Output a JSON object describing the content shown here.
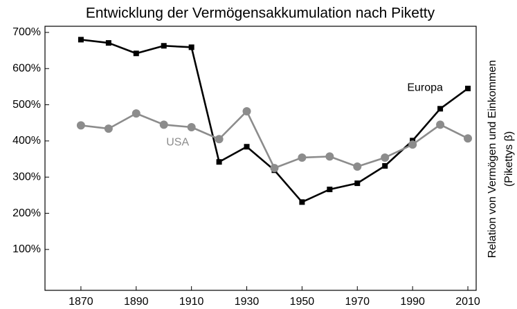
{
  "chart_data": {
    "type": "line",
    "title": "Entwicklung der Vermögensakkumulation nach Piketty",
    "y_label": [
      "Relation von Vermögen und Einkommen",
      "(Pikettys β)"
    ],
    "x": [
      1870,
      1880,
      1890,
      1900,
      1910,
      1920,
      1930,
      1940,
      1950,
      1960,
      1970,
      1980,
      1990,
      2000,
      2010
    ],
    "series": [
      {
        "name": "Europa",
        "color": "#000000",
        "marker": "square",
        "values": [
          680,
          671,
          642,
          663,
          659,
          342,
          384,
          319,
          231,
          266,
          283,
          331,
          401,
          489,
          545
        ]
      },
      {
        "name": "USA",
        "color": "#8c8c8c",
        "marker": "circle",
        "values": [
          443,
          434,
          476,
          445,
          438,
          405,
          482,
          325,
          354,
          357,
          329,
          354,
          390,
          445,
          407
        ]
      }
    ],
    "xlim": [
      1857,
      2013
    ],
    "xticks": [
      1870,
      1890,
      1910,
      1930,
      1950,
      1970,
      1990,
      2010
    ],
    "ylim": [
      -13,
      717
    ],
    "yticks": [
      {
        "value": 100,
        "label": "100%"
      },
      {
        "value": 200,
        "label": "200%"
      },
      {
        "value": 300,
        "label": "300%"
      },
      {
        "value": 400,
        "label": "400%"
      },
      {
        "value": 500,
        "label": "500%"
      },
      {
        "value": 600,
        "label": "600%"
      },
      {
        "value": 700,
        "label": "700%"
      }
    ],
    "grid": false
  }
}
